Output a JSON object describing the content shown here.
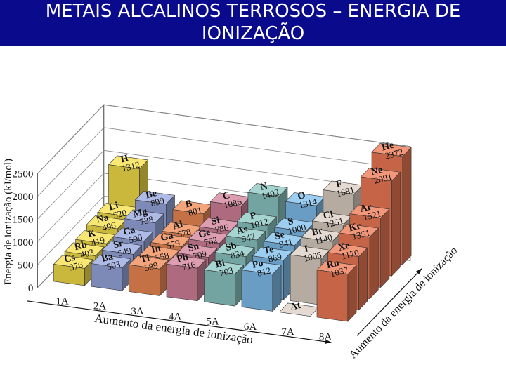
{
  "title": "METAIS ALCALINOS TERROSOS – ENERGIA DE IONIZAÇÃO",
  "colors": {
    "title_bg": "#0a0a8c",
    "title_text": "#ffffff",
    "group_1A": "#f6e04a",
    "group_2A": "#98a8e0",
    "group_3A": "#f08a55",
    "group_4A": "#d4829c",
    "group_5A": "#8cc8c4",
    "group_6A": "#80c0ee",
    "group_7A": "#ddd0c4",
    "group_8A": "#f07a55"
  },
  "chart_data": {
    "type": "bar3d",
    "ylabel": "Energia de ionização (kJ/mol)",
    "ylim": [
      0,
      2500
    ],
    "yticks": [
      0,
      500,
      1000,
      1500,
      2000,
      2500
    ],
    "x_axis_label": "Aumento da energia de ionização",
    "depth_axis_label": "Aumento da energia de ionização",
    "groups": [
      "1A",
      "2A",
      "3A",
      "4A",
      "5A",
      "6A",
      "7A",
      "8A"
    ],
    "elements": [
      {
        "symbol": "H",
        "value": 1312,
        "group": "1A",
        "period": 1
      },
      {
        "symbol": "He",
        "value": 2372,
        "group": "8A",
        "period": 1
      },
      {
        "symbol": "Li",
        "value": 520,
        "group": "1A",
        "period": 2
      },
      {
        "symbol": "Be",
        "value": 899,
        "group": "2A",
        "period": 2
      },
      {
        "symbol": "B",
        "value": 801,
        "group": "3A",
        "period": 2
      },
      {
        "symbol": "C",
        "value": 1086,
        "group": "4A",
        "period": 2
      },
      {
        "symbol": "N",
        "value": 1402,
        "group": "5A",
        "period": 2
      },
      {
        "symbol": "O",
        "value": 1314,
        "group": "6A",
        "period": 2
      },
      {
        "symbol": "F",
        "value": 1681,
        "group": "7A",
        "period": 2
      },
      {
        "symbol": "Ne",
        "value": 2081,
        "group": "8A",
        "period": 2
      },
      {
        "symbol": "Na",
        "value": 496,
        "group": "1A",
        "period": 3
      },
      {
        "symbol": "Mg",
        "value": 738,
        "group": "2A",
        "period": 3
      },
      {
        "symbol": "Al",
        "value": 578,
        "group": "3A",
        "period": 3
      },
      {
        "symbol": "Si",
        "value": 786,
        "group": "4A",
        "period": 3
      },
      {
        "symbol": "P",
        "value": 1012,
        "group": "5A",
        "period": 3
      },
      {
        "symbol": "S",
        "value": 1000,
        "group": "6A",
        "period": 3
      },
      {
        "symbol": "Cl",
        "value": 1251,
        "group": "7A",
        "period": 3
      },
      {
        "symbol": "Ar",
        "value": 1521,
        "group": "8A",
        "period": 3
      },
      {
        "symbol": "K",
        "value": 419,
        "group": "1A",
        "period": 4
      },
      {
        "symbol": "Ca",
        "value": 590,
        "group": "2A",
        "period": 4
      },
      {
        "symbol": "Ga",
        "value": 579,
        "group": "3A",
        "period": 4
      },
      {
        "symbol": "Ge",
        "value": 762,
        "group": "4A",
        "period": 4
      },
      {
        "symbol": "As",
        "value": 947,
        "group": "5A",
        "period": 4
      },
      {
        "symbol": "Se",
        "value": 941,
        "group": "6A",
        "period": 4
      },
      {
        "symbol": "Br",
        "value": 1140,
        "group": "7A",
        "period": 4
      },
      {
        "symbol": "Kr",
        "value": 1351,
        "group": "8A",
        "period": 4
      },
      {
        "symbol": "Rb",
        "value": 403,
        "group": "1A",
        "period": 5
      },
      {
        "symbol": "Sr",
        "value": 549,
        "group": "2A",
        "period": 5
      },
      {
        "symbol": "In",
        "value": 558,
        "group": "3A",
        "period": 5
      },
      {
        "symbol": "Sn",
        "value": 709,
        "group": "4A",
        "period": 5
      },
      {
        "symbol": "Sb",
        "value": 834,
        "group": "5A",
        "period": 5
      },
      {
        "symbol": "Te",
        "value": 869,
        "group": "6A",
        "period": 5
      },
      {
        "symbol": "I",
        "value": 1008,
        "group": "7A",
        "period": 5
      },
      {
        "symbol": "Xe",
        "value": 1170,
        "group": "8A",
        "period": 5
      },
      {
        "symbol": "Cs",
        "value": 376,
        "group": "1A",
        "period": 6
      },
      {
        "symbol": "Ba",
        "value": 503,
        "group": "2A",
        "period": 6
      },
      {
        "symbol": "Tl",
        "value": 589,
        "group": "3A",
        "period": 6
      },
      {
        "symbol": "Pb",
        "value": 716,
        "group": "4A",
        "period": 6
      },
      {
        "symbol": "Bi",
        "value": 703,
        "group": "5A",
        "period": 6
      },
      {
        "symbol": "Po",
        "value": 812,
        "group": "6A",
        "period": 6
      },
      {
        "symbol": "At",
        "value": null,
        "group": "7A",
        "period": 6
      },
      {
        "symbol": "Rn",
        "value": 1037,
        "group": "8A",
        "period": 6
      }
    ]
  }
}
